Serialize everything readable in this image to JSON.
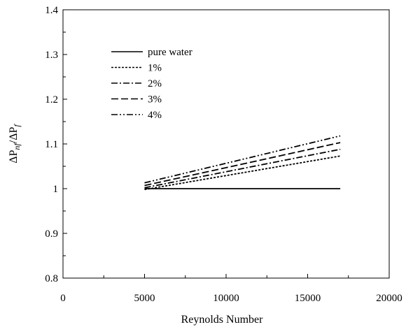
{
  "chart_data": {
    "type": "line",
    "xlabel": "Reynolds Number",
    "ylabel": {
      "delta": "Δ",
      "p": "P",
      "sub_nf": "nf",
      "slash": "/",
      "sub_f": "f"
    },
    "xlim": [
      0,
      20000
    ],
    "ylim": [
      0.8,
      1.4
    ],
    "xticks": [
      "0",
      "5000",
      "10000",
      "15000",
      "20000"
    ],
    "yticks": [
      "0.8",
      "0.9",
      "1",
      "1.1",
      "1.2",
      "1.3",
      "1.4"
    ],
    "grid": false,
    "legend_position": "top-left",
    "series": [
      {
        "name": "pure water",
        "dash": "solid",
        "x": [
          5000,
          17000
        ],
        "y": [
          1.0,
          1.0
        ]
      },
      {
        "name": "1%",
        "dash": "dot",
        "x": [
          5000,
          17000
        ],
        "y": [
          0.998,
          1.073
        ]
      },
      {
        "name": "2%",
        "dash": "dashdot",
        "x": [
          5000,
          17000
        ],
        "y": [
          1.002,
          1.088
        ]
      },
      {
        "name": "3%",
        "dash": "dash",
        "x": [
          5000,
          17000
        ],
        "y": [
          1.007,
          1.103
        ]
      },
      {
        "name": "4%",
        "dash": "dashdotdot",
        "x": [
          5000,
          17000
        ],
        "y": [
          1.013,
          1.118
        ]
      }
    ]
  }
}
